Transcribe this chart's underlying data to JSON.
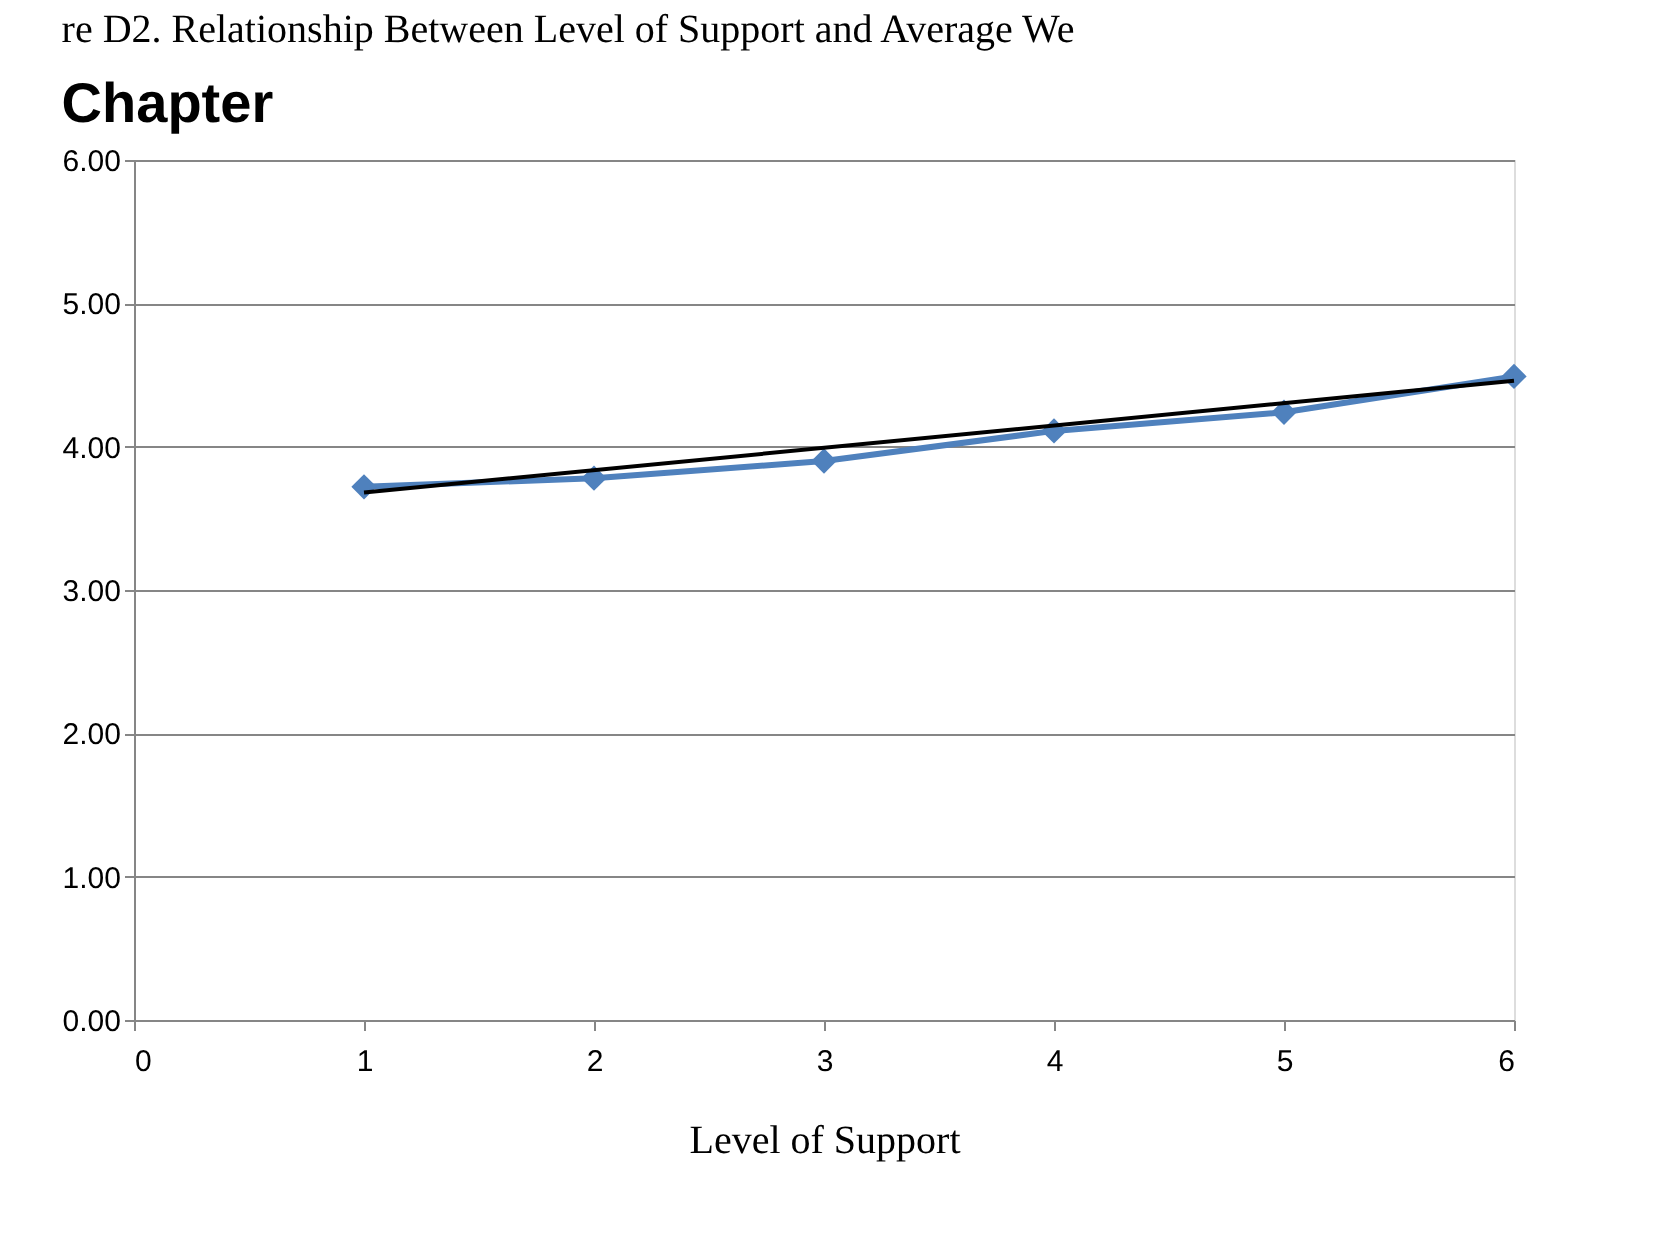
{
  "chart_data": {
    "type": "line",
    "title": "Chapter",
    "xlabel": "Level of Support",
    "annotations": [
      "re D2.  Relationship Between Level of Support and Average We"
    ],
    "series": [
      {
        "color": "#4f81bd",
        "marker": "diamond",
        "x": [
          1,
          2,
          3,
          4,
          5,
          6
        ],
        "values": [
          3.72,
          3.78,
          3.9,
          4.11,
          4.24,
          4.49
        ]
      },
      {
        "color": "#000000",
        "marker": "none",
        "x": [
          1,
          6
        ],
        "values": [
          3.68,
          4.46
        ]
      }
    ],
    "xlim": [
      0,
      6
    ],
    "xticks": [
      0,
      1,
      2,
      3,
      4,
      5,
      6
    ],
    "ylim": [
      0,
      6
    ],
    "yticks": [
      {
        "value": 0,
        "label": "0.00"
      },
      {
        "value": 1,
        "label": "1.00"
      },
      {
        "value": 2,
        "label": "2.00"
      },
      {
        "value": 3,
        "label": "3.00"
      },
      {
        "value": 4,
        "label": "4.00"
      },
      {
        "value": 5,
        "label": "5.00"
      },
      {
        "value": 6,
        "label": "6.00"
      }
    ],
    "grid": "y"
  }
}
